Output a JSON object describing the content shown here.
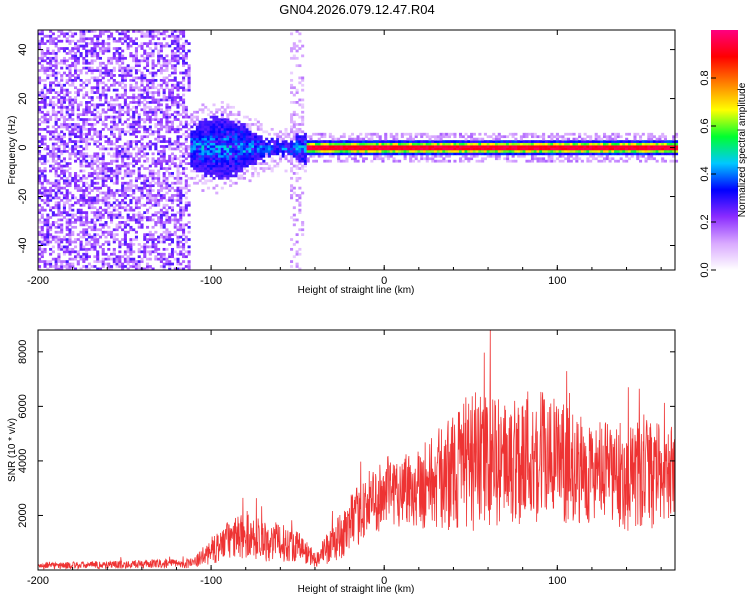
{
  "title": "GN04.2026.079.12.47.R04",
  "chart_data": [
    {
      "type": "heatmap",
      "name": "spectrogram",
      "xlabel": "Height of straight line (km)",
      "ylabel": "Frequency (Hz)",
      "xlim": [
        -200,
        168
      ],
      "ylim": [
        -50,
        48
      ],
      "xticks": [
        -200,
        -100,
        0,
        100
      ],
      "yticks": [
        -40,
        -20,
        0,
        20,
        40
      ],
      "colorbar": {
        "label": "Normalized spectral amplitude",
        "range": [
          0,
          1
        ],
        "ticks": [
          "0.0",
          "0.2",
          "0.4",
          "0.6",
          "0.8"
        ],
        "colors": [
          "#ffffff",
          "#d9a9ff",
          "#8b2cff",
          "#0000ff",
          "#00c8ff",
          "#00ff30",
          "#ffff00",
          "#ff8000",
          "#ff0000",
          "#ff0080"
        ]
      },
      "regions": [
        {
          "x_range": [
            -200,
            -113
          ],
          "description_values": {
            "freq_half_width": 48,
            "amplitude": 0.1
          }
        },
        {
          "x_range": [
            -113,
            -45
          ],
          "description_values": {
            "freq_half_width": 10,
            "amplitude": 0.3
          }
        },
        {
          "x_range": [
            -45,
            168
          ],
          "description_values": {
            "freq_half_width": 3,
            "amplitude": 0.9
          }
        }
      ]
    },
    {
      "type": "line",
      "name": "snr",
      "xlabel": "Height of straight line (km)",
      "ylabel": "SNR (10 * v/v)",
      "xlim": [
        -200,
        168
      ],
      "ylim": [
        0,
        8800
      ],
      "xticks": [
        -200,
        -100,
        0,
        100
      ],
      "yticks": [
        2000,
        4000,
        6000,
        8000
      ],
      "color": "#ee3333",
      "envelope": {
        "x": [
          -200,
          -150,
          -110,
          -100,
          -90,
          -80,
          -70,
          -60,
          -50,
          -40,
          -30,
          -20,
          -10,
          0,
          10,
          20,
          30,
          40,
          50,
          60,
          70,
          80,
          90,
          100,
          110,
          120,
          130,
          140,
          150,
          160,
          168
        ],
        "mean": [
          150,
          200,
          250,
          700,
          1100,
          1300,
          1100,
          1000,
          900,
          400,
          900,
          1600,
          2400,
          2800,
          3000,
          3100,
          3300,
          3600,
          4000,
          4000,
          3900,
          4200,
          4300,
          4000,
          3700,
          3600,
          3500,
          3400,
          3300,
          3600,
          3600
        ],
        "spread": [
          120,
          150,
          180,
          500,
          700,
          900,
          800,
          700,
          600,
          300,
          700,
          1000,
          1200,
          1300,
          1400,
          1600,
          1800,
          2200,
          2600,
          2400,
          2300,
          2600,
          2600,
          2300,
          2000,
          1900,
          1900,
          2000,
          2100,
          1800,
          1600
        ]
      }
    }
  ]
}
